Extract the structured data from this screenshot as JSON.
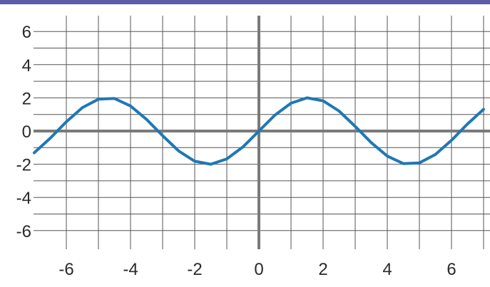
{
  "colors": {
    "top_bar": "#5c5ca8",
    "grid": "#555555",
    "axis": "#7a7a7a",
    "curve": "#1f78b4",
    "text": "#2a2a2a"
  },
  "chart_data": {
    "type": "line",
    "title": "",
    "xlabel": "",
    "ylabel": "",
    "xlim": [
      -7.1,
      7.1
    ],
    "ylim": [
      -6.9,
      7.0
    ],
    "grid": true,
    "x_ticks": [
      -6,
      -5,
      -4,
      -3,
      -2,
      -1,
      0,
      1,
      2,
      3,
      4,
      5,
      6,
      7
    ],
    "y_ticks": [
      -6,
      -5,
      -4,
      -3,
      -2,
      -1,
      0,
      1,
      2,
      3,
      4,
      5,
      6,
      7
    ],
    "x_tick_labels": [
      {
        "value": -6,
        "text": "-6"
      },
      {
        "value": -4,
        "text": "-4"
      },
      {
        "value": -2,
        "text": "-2"
      },
      {
        "value": 0,
        "text": "0"
      },
      {
        "value": 2,
        "text": "2"
      },
      {
        "value": 4,
        "text": "4"
      },
      {
        "value": 6,
        "text": "6"
      }
    ],
    "y_tick_labels": [
      {
        "value": 6,
        "text": "6"
      },
      {
        "value": 4,
        "text": "4"
      },
      {
        "value": 2,
        "text": "2"
      },
      {
        "value": 0,
        "text": "0"
      },
      {
        "value": -2,
        "text": "-2"
      },
      {
        "value": -4,
        "text": "-4"
      },
      {
        "value": -6,
        "text": "-6"
      }
    ],
    "series": [
      {
        "x": [
          -7.0,
          -6.5,
          -6.0,
          -5.5,
          -5.0,
          -4.5,
          -4.0,
          -3.5,
          -3.0,
          -2.5,
          -2.0,
          -1.5,
          -1.0,
          -0.5,
          0.0,
          0.5,
          1.0,
          1.5,
          2.0,
          2.5,
          3.0,
          3.5,
          4.0,
          4.5,
          5.0,
          5.5,
          6.0,
          6.5,
          7.0
        ],
        "y": [
          -1.31,
          -0.43,
          0.56,
          1.41,
          1.92,
          1.96,
          1.51,
          0.7,
          -0.28,
          -1.2,
          -1.82,
          -2.0,
          -1.68,
          -0.96,
          0.0,
          0.96,
          1.68,
          2.0,
          1.82,
          1.2,
          0.28,
          -0.7,
          -1.51,
          -1.96,
          -1.92,
          -1.41,
          -0.56,
          0.43,
          1.31
        ]
      }
    ]
  }
}
